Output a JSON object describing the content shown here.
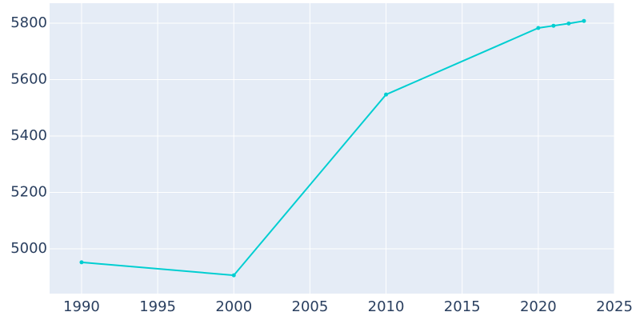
{
  "chart_data": {
    "type": "line",
    "x": [
      1990,
      2000,
      2010,
      2020,
      2021,
      2022,
      2023
    ],
    "series": [
      {
        "color": "#00ced1",
        "values": [
          4952,
          4906,
          5547,
          5783,
          5791,
          5799,
          5808
        ]
      }
    ],
    "xlim": [
      1987.9,
      2025
    ],
    "xticks": [
      1990,
      1995,
      2000,
      2005,
      2010,
      2015,
      2020,
      2025
    ],
    "ylim": [
      4841,
      5871
    ],
    "yticks": [
      5000,
      5200,
      5400,
      5600,
      5800
    ],
    "grid": true
  }
}
